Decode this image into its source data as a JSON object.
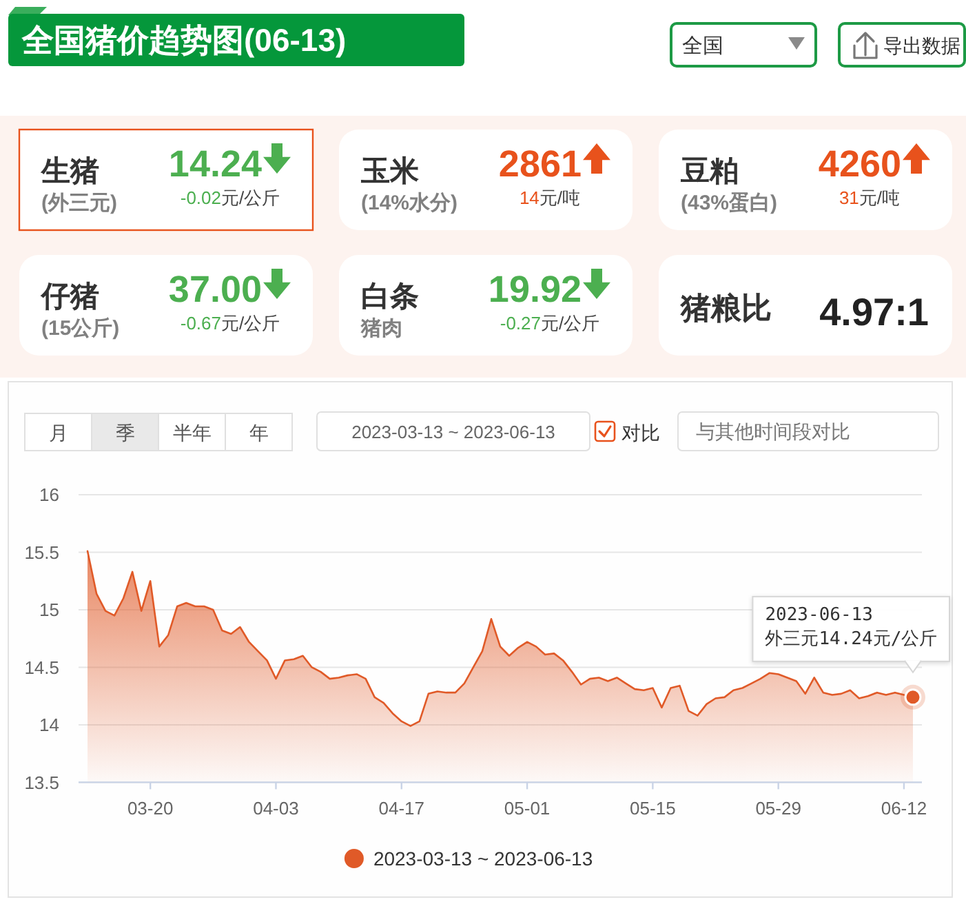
{
  "chart_data": [
    {
      "type": "other",
      "title": "全国猪价趋势图(06-13)",
      "annotations": [
        "全国",
        "导出数据",
        "生猪",
        "(外三元)",
        "14.24",
        "-0.02元/公斤",
        "玉米",
        "(14%水分)",
        "2861",
        "14元/吨",
        "豆粕",
        "(43%蛋白)",
        "4260",
        "31元/吨",
        "仔猪",
        "(15公斤)",
        "37.00",
        "-0.67元/公斤",
        "白条",
        "猪肉",
        "19.92",
        "-0.27元/公斤",
        "猪粮比",
        "4.97:1"
      ]
    },
    {
      "type": "area",
      "x": [
        "2023-03-13",
        "2023-03-14",
        "2023-03-15",
        "2023-03-16",
        "2023-03-17",
        "2023-03-18",
        "2023-03-19",
        "2023-03-20",
        "2023-03-21",
        "2023-03-22",
        "2023-03-23",
        "2023-03-24",
        "2023-03-25",
        "2023-03-26",
        "2023-03-27",
        "2023-03-28",
        "2023-03-29",
        "2023-03-30",
        "2023-03-31",
        "2023-04-01",
        "2023-04-02",
        "2023-04-03",
        "2023-04-04",
        "2023-04-05",
        "2023-04-06",
        "2023-04-07",
        "2023-04-08",
        "2023-04-09",
        "2023-04-10",
        "2023-04-11",
        "2023-04-12",
        "2023-04-13",
        "2023-04-14",
        "2023-04-15",
        "2023-04-16",
        "2023-04-17",
        "2023-04-18",
        "2023-04-19",
        "2023-04-20",
        "2023-04-21",
        "2023-04-22",
        "2023-04-23",
        "2023-04-24",
        "2023-04-25",
        "2023-04-26",
        "2023-04-27",
        "2023-04-28",
        "2023-04-29",
        "2023-04-30",
        "2023-05-01",
        "2023-05-02",
        "2023-05-03",
        "2023-05-04",
        "2023-05-05",
        "2023-05-06",
        "2023-05-07",
        "2023-05-08",
        "2023-05-09",
        "2023-05-10",
        "2023-05-11",
        "2023-05-12",
        "2023-05-13",
        "2023-05-14",
        "2023-05-15",
        "2023-05-16",
        "2023-05-17",
        "2023-05-18",
        "2023-05-19",
        "2023-05-20",
        "2023-05-21",
        "2023-05-22",
        "2023-05-23",
        "2023-05-24",
        "2023-05-25",
        "2023-05-26",
        "2023-05-27",
        "2023-05-28",
        "2023-05-29",
        "2023-05-30",
        "2023-05-31",
        "2023-06-01",
        "2023-06-02",
        "2023-06-03",
        "2023-06-04",
        "2023-06-05",
        "2023-06-06",
        "2023-06-07",
        "2023-06-08",
        "2023-06-09",
        "2023-06-10",
        "2023-06-11",
        "2023-06-12",
        "2023-06-13"
      ],
      "xlim": [
        "2023-03-12",
        "2023-06-14"
      ],
      "xticks": [
        {
          "value": "2023-03-20",
          "label": "03-20"
        },
        {
          "value": "2023-04-03",
          "label": "04-03"
        },
        {
          "value": "2023-04-17",
          "label": "04-17"
        },
        {
          "value": "2023-05-01",
          "label": "05-01"
        },
        {
          "value": "2023-05-15",
          "label": "05-15"
        },
        {
          "value": "2023-05-29",
          "label": "05-29"
        },
        {
          "value": "2023-06-12",
          "label": "06-12"
        }
      ],
      "ylim": [
        13.5,
        16
      ],
      "yticks": [
        13.5,
        14,
        14.5,
        15,
        15.5,
        16
      ],
      "grid": "y",
      "legend": "bottom",
      "series": [
        {
          "name": "2023-03-13 ~ 2023-06-13",
          "color": "#e05a28",
          "values": [
            15.51,
            15.14,
            14.99,
            14.95,
            15.1,
            15.33,
            14.99,
            15.25,
            14.68,
            14.78,
            15.03,
            15.06,
            15.03,
            15.03,
            15,
            14.82,
            14.79,
            14.85,
            14.72,
            14.64,
            14.56,
            14.4,
            14.56,
            14.57,
            14.6,
            14.5,
            14.46,
            14.4,
            14.41,
            14.43,
            14.44,
            14.4,
            14.24,
            14.19,
            14.1,
            14.03,
            13.99,
            14.03,
            14.27,
            14.29,
            14.28,
            14.28,
            14.36,
            14.5,
            14.64,
            14.92,
            14.68,
            14.6,
            14.67,
            14.72,
            14.68,
            14.61,
            14.62,
            14.56,
            14.46,
            14.35,
            14.4,
            14.41,
            14.38,
            14.41,
            14.36,
            14.31,
            14.3,
            14.32,
            14.15,
            14.32,
            14.34,
            14.12,
            14.08,
            14.18,
            14.23,
            14.24,
            14.3,
            14.32,
            14.36,
            14.4,
            14.45,
            14.44,
            14.41,
            14.38,
            14.27,
            14.41,
            14.28,
            14.26,
            14.27,
            14.3,
            14.23,
            14.25,
            14.28,
            14.26,
            14.28,
            14.26,
            14.24
          ]
        }
      ],
      "annotations": [
        "月",
        "季",
        "半年",
        "年",
        "2023-03-13 ~ 2023-06-13",
        "对比",
        "与其他时间段对比",
        {
          "text": "2023-06-13\n外三元14.24元/公斤",
          "x": "2023-06-13",
          "y": 14.24
        }
      ]
    }
  ]
}
